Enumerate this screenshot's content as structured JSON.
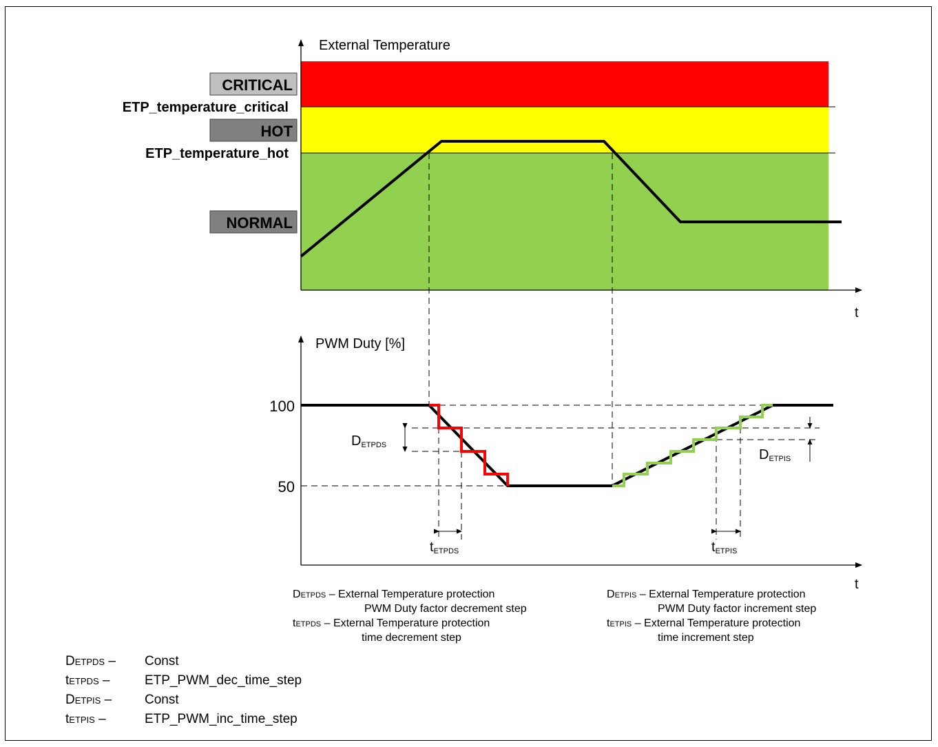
{
  "top_chart": {
    "y_axis_label": "External Temperature",
    "x_axis_label": "t",
    "zones": [
      {
        "name": "CRITICAL",
        "color": "#ff0000",
        "label_color": "#ff0000"
      },
      {
        "name": "HOT",
        "color": "#ffff00",
        "label_color": "#ffff00"
      },
      {
        "name": "NORMAL",
        "color": "#92d050",
        "label_color": "#92d050"
      }
    ],
    "thresholds": {
      "critical": "ETP_temperature_critical",
      "hot": "ETP_temperature_hot"
    }
  },
  "bottom_chart": {
    "y_axis_label": "PWM Duty [%]",
    "x_axis_label": "t",
    "y_ticks": [
      "100",
      "50"
    ],
    "step_labels": {
      "d_dec": {
        "main": "D",
        "sub": "ETPDS"
      },
      "d_inc": {
        "main": "D",
        "sub": "ETPIS"
      },
      "t_dec": {
        "main": "t",
        "sub": "ETPDS"
      },
      "t_inc": {
        "main": "t",
        "sub": "ETPIS"
      }
    },
    "colors": {
      "decrement_steps": "#ff0000",
      "increment_steps": "#92d050"
    }
  },
  "legend": {
    "left": [
      {
        "sym": "D",
        "sub": "ETPDS",
        "sep": " – ",
        "text1": "External Temperature protection",
        "text2": "PWM Duty factor decrement step"
      },
      {
        "sym": "t",
        "sub": "ETPDS",
        "sep": "  –  ",
        "text1": "External Temperature protection",
        "text2": "time decrement step"
      }
    ],
    "right": [
      {
        "sym": "D",
        "sub": "ETPIS",
        "sep": " – ",
        "text1": "External Temperature protection",
        "text2": "PWM Duty factor increment step"
      },
      {
        "sym": "t",
        "sub": "ETPIS",
        "sep": "  –  ",
        "text1": "External Temperature protection",
        "text2": "time increment step"
      }
    ]
  },
  "definitions": [
    {
      "sym": "D",
      "sub": "ETPDS",
      "sep": " –",
      "value": "Const"
    },
    {
      "sym": "t",
      "sub": "ETPDS",
      "sep": " –",
      "value": "ETP_PWM_dec_time_step"
    },
    {
      "sym": "D",
      "sub": "ETPIS",
      "sep": " –",
      "value": "Const"
    },
    {
      "sym": "t",
      "sub": "ETPIS",
      "sep": " –",
      "value": "ETP_PWM_inc_time_step"
    }
  ]
}
